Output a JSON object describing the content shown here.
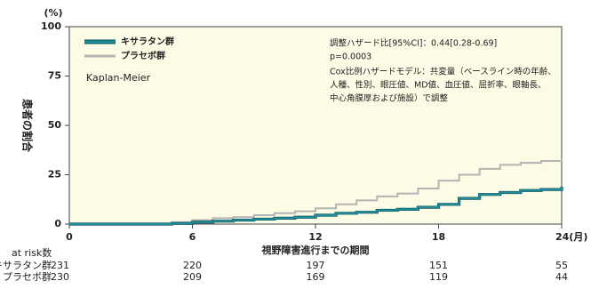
{
  "chart_data": {
    "type": "step",
    "y_unit": "(%)",
    "ylabel": "患者の割合",
    "xlabel": "視野障害進行までの期間",
    "x": [
      0,
      4.5,
      5,
      6,
      7,
      8,
      9,
      10,
      11,
      12,
      13,
      14,
      15,
      16,
      17,
      18,
      19,
      20,
      21,
      22,
      23,
      24
    ],
    "series": [
      {
        "name": "キサラタン群",
        "color": "#1f8e9c",
        "values": [
          0,
          0,
          0.3,
          1,
          1.5,
          2,
          2.5,
          3,
          3.5,
          4.5,
          5.5,
          6,
          7,
          7.5,
          8.5,
          10,
          13,
          15,
          16,
          17,
          17.5,
          19
        ]
      },
      {
        "name": "プラセボ群",
        "color": "#b4b4b4",
        "values": [
          0,
          0,
          1,
          2,
          3,
          3.5,
          4.5,
          5.5,
          6.5,
          8,
          10,
          12,
          14,
          15.5,
          18,
          22,
          25,
          28,
          30,
          31,
          32,
          33
        ]
      }
    ],
    "xlim": [
      0,
      24
    ],
    "xticks": [
      0,
      6,
      12,
      18,
      {
        "value": 24,
        "label": "24(月)"
      }
    ],
    "ylim": [
      0,
      100
    ],
    "yticks": [
      0,
      25,
      50,
      75,
      100
    ],
    "method_label": "Kaplan-Meier",
    "annotations": [
      "調整ハザード比[95%CI]：0.44[0.28-0.69]",
      "p=0.0003",
      "Cox比例ハザードモデル：共変量（ベースライン時の年齢、",
      "人種、性別、眼圧値、MD値、血圧値、屈折率、眼軸長、",
      "中心角膜厚および施設）で調整"
    ],
    "risk_table": {
      "title": "at risk数",
      "rows": [
        {
          "label": "キサラタン群",
          "values": [
            231,
            220,
            197,
            151,
            55
          ]
        },
        {
          "label": "プラセボ群",
          "values": [
            230,
            209,
            169,
            119,
            44
          ]
        }
      ]
    }
  }
}
